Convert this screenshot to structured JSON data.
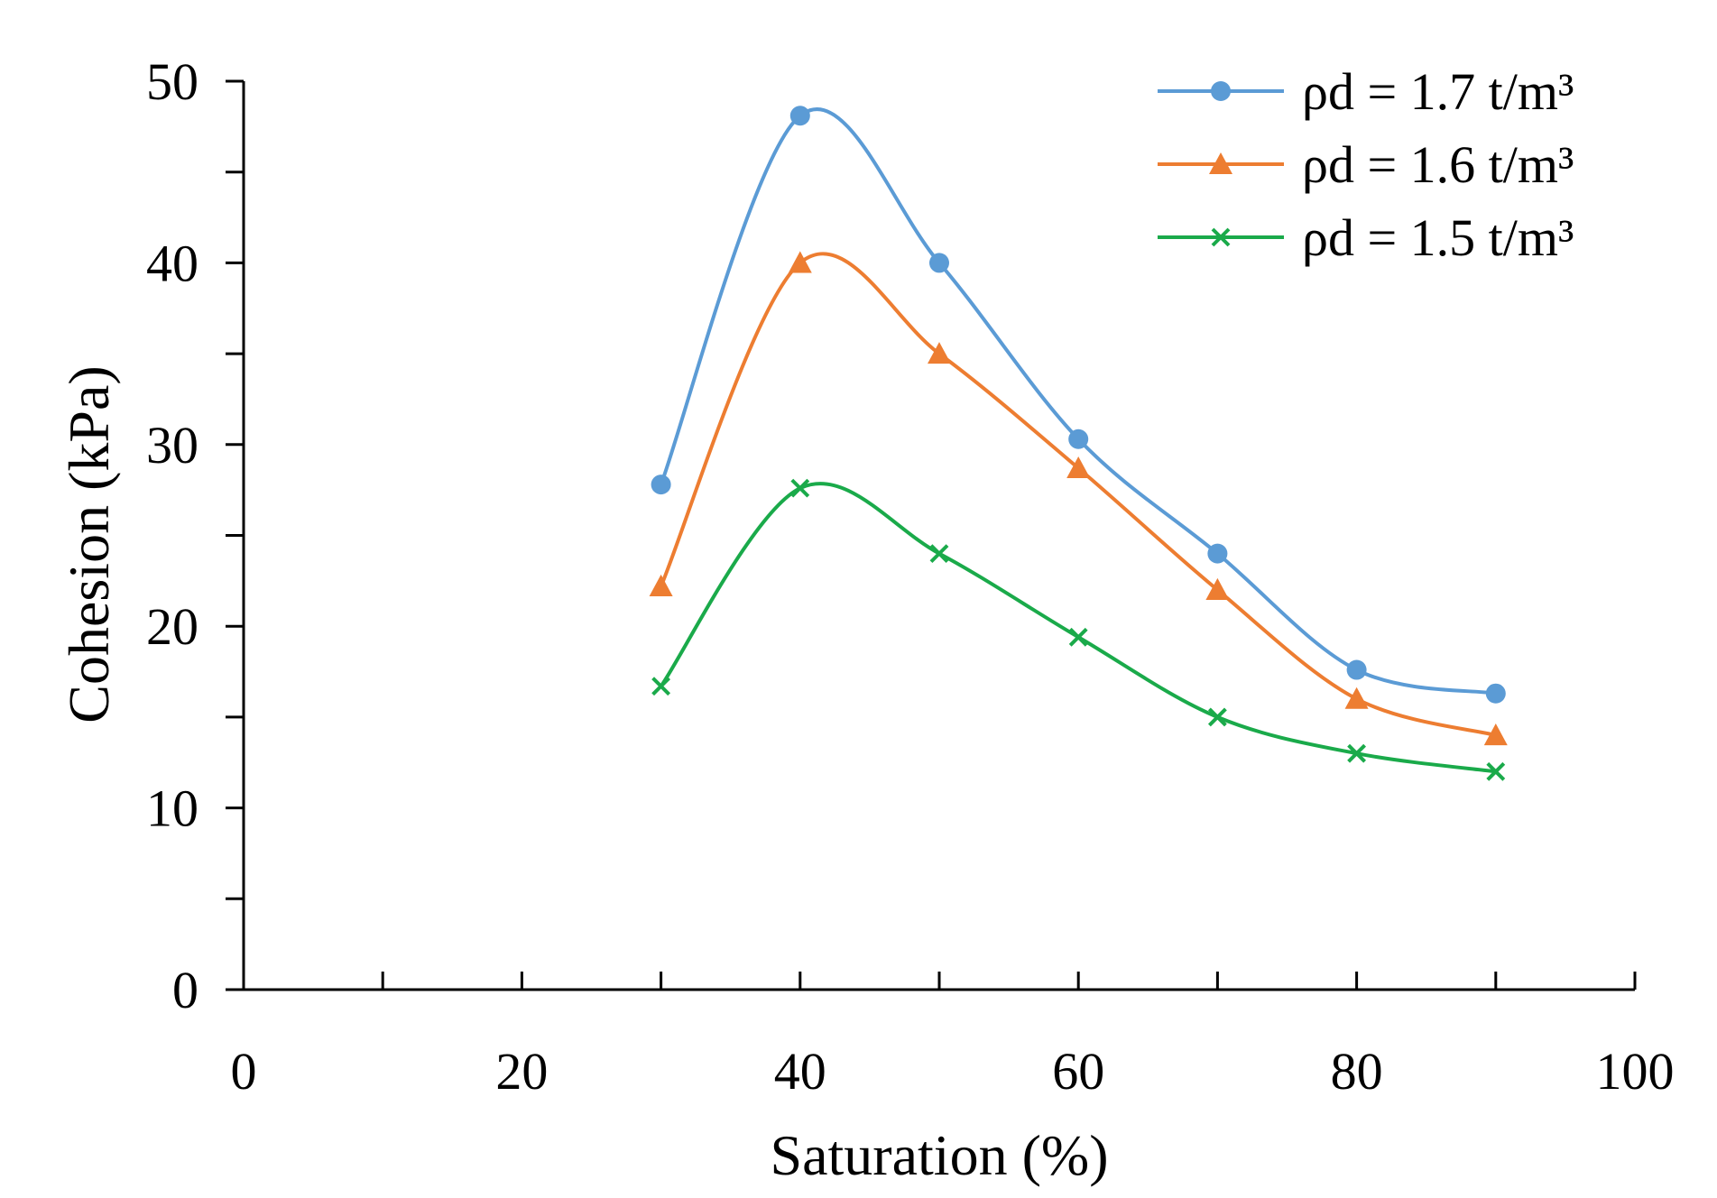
{
  "chart_data": {
    "type": "line",
    "title": "",
    "xlabel": "Saturation (%)",
    "ylabel": "Cohesion (kPa)",
    "xlim": [
      0,
      100
    ],
    "ylim": [
      0,
      50
    ],
    "x_ticks": [
      0,
      20,
      40,
      60,
      80,
      100
    ],
    "x_tick_labels": [
      "0",
      "20",
      "40",
      "60",
      "80",
      "100"
    ],
    "x_minor_ticks": [
      10,
      30,
      50,
      70,
      90
    ],
    "y_ticks": [
      0,
      10,
      20,
      30,
      40,
      50
    ],
    "y_tick_labels": [
      "0",
      "10",
      "20",
      "30",
      "40",
      "50"
    ],
    "y_minor_ticks": [
      5,
      15,
      25,
      35,
      45
    ],
    "grid": false,
    "legend_position": "top-right",
    "x": [
      30,
      40,
      50,
      60,
      70,
      80,
      90
    ],
    "series": [
      {
        "name": "ρd = 1.7 t/m³",
        "color": "#5b9bd5",
        "marker": "circle",
        "values": [
          27.8,
          48.1,
          40.0,
          30.3,
          24.0,
          17.6,
          16.3
        ]
      },
      {
        "name": "ρd = 1.6 t/m³",
        "color": "#ed7d31",
        "marker": "triangle",
        "values": [
          22.2,
          40.0,
          35.0,
          28.7,
          22.0,
          16.0,
          14.0
        ]
      },
      {
        "name": "ρd = 1.5 t/m³",
        "color": "#1aaa4a",
        "marker": "x",
        "values": [
          16.7,
          27.6,
          24.0,
          19.4,
          15.0,
          13.0,
          12.0
        ]
      }
    ]
  }
}
